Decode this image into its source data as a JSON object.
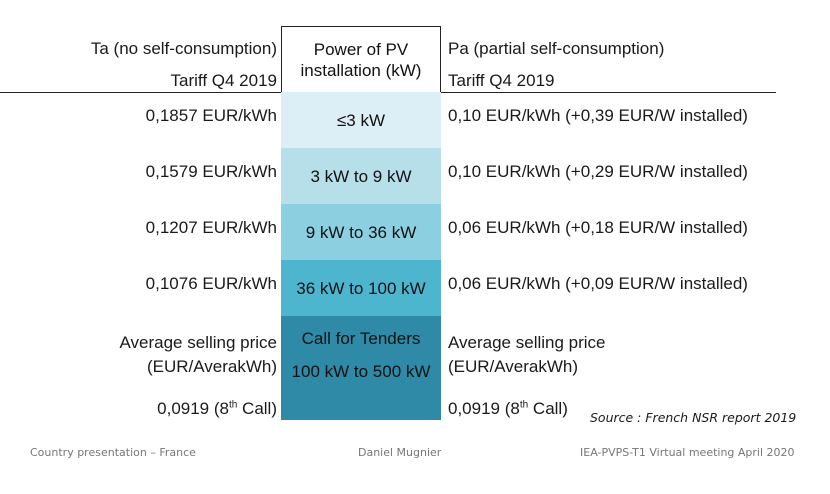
{
  "header": {
    "left_title": "Ta (no self-consumption)",
    "left_sub": "Tariff Q4 2019",
    "center_title": "Power of PV installation (kW)",
    "right_title": "Pa (partial self-consumption)",
    "right_sub": "Tariff Q4 2019"
  },
  "rows": [
    {
      "left": "0,1857 EUR/kWh",
      "center": "≤3 kW",
      "right": "0,10 EUR/kWh (+0,39 EUR/W installed)",
      "color": "#ddeff6"
    },
    {
      "left": "0,1579 EUR/kWh",
      "center": "3 kW to 9 kW",
      "right": "0,10 EUR/kWh (+0,29 EUR/W installed)",
      "color": "#b6dfea"
    },
    {
      "left": "0,1207 EUR/kWh",
      "center": "9 kW to 36 kW",
      "right": "0,06 EUR/kWh (+0,18 EUR/W installed)",
      "color": "#8ccfe0"
    },
    {
      "left": "0,1076 EUR/kWh",
      "center": "36 kW to 100 kW",
      "right": "0,06 EUR/kWh (+0,09 EUR/W installed)",
      "color": "#4db5cd"
    }
  ],
  "tender": {
    "left_label_1": "Average selling price",
    "left_label_2": "(EUR/AverakWh)",
    "left_value": "0,0919 (8",
    "left_sup": "th",
    "left_tail": " Call)",
    "center_1": "Call for Tenders",
    "center_2": "100 kW to 500 kW",
    "right_label_1": "Average selling price",
    "right_label_2": "(EUR/AverakWh)",
    "right_value": "0,0919 (8",
    "right_sup": "th",
    "right_tail": " Call)",
    "color": "#2e8aa6"
  },
  "source": "Source : French NSR report 2019",
  "footer": {
    "left": "Country presentation – France",
    "center": "Daniel Mugnier",
    "right": "IEA-PVPS-T1 Virtual meeting April 2020"
  }
}
